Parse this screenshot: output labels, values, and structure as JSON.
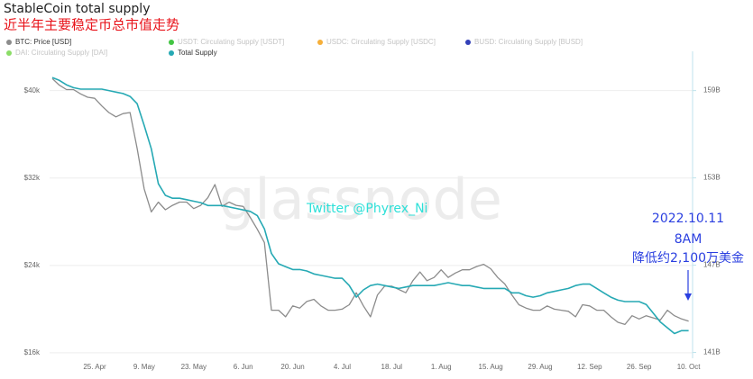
{
  "chart_data": {
    "type": "line",
    "title": "StableCoin total supply",
    "subtitle": "近半年主要稳定币总市值走势",
    "categories": [
      null,
      null,
      null,
      null,
      null,
      null,
      "25. Apr",
      null,
      null,
      null,
      null,
      null,
      null,
      "9. May",
      null,
      null,
      null,
      null,
      null,
      null,
      "23. May",
      null,
      null,
      null,
      null,
      null,
      null,
      "6. Jun",
      null,
      null,
      null,
      null,
      null,
      null,
      "20. Jun",
      null,
      null,
      null,
      null,
      null,
      null,
      "4. Jul",
      null,
      null,
      null,
      null,
      null,
      null,
      "18. Jul",
      null,
      null,
      null,
      null,
      null,
      null,
      "1. Aug",
      null,
      null,
      null,
      null,
      null,
      null,
      "15. Aug",
      null,
      null,
      null,
      null,
      null,
      null,
      "29. Aug",
      null,
      null,
      null,
      null,
      null,
      null,
      "12. Sep",
      null,
      null,
      null,
      null,
      null,
      null,
      "26. Sep",
      null,
      null,
      null,
      null,
      null,
      null,
      "10. Oct"
    ],
    "series": [
      {
        "name": "BTC: Price [USD]",
        "color": "#8c8c8c",
        "values": [
          41100,
          40500,
          40100,
          40100,
          39700,
          39400,
          39300,
          38600,
          38000,
          37600,
          37900,
          38000,
          34700,
          31000,
          28900,
          29800,
          29100,
          29500,
          29800,
          29800,
          29200,
          29500,
          30200,
          31400,
          29400,
          29800,
          29500,
          29400,
          28400,
          27300,
          26100,
          19900,
          19900,
          19300,
          20300,
          20100,
          20700,
          20900,
          20300,
          19900,
          19900,
          20000,
          20400,
          21500,
          20300,
          19300,
          21300,
          22100,
          22100,
          21800,
          21500,
          22600,
          23400,
          22600,
          22900,
          23600,
          22900,
          23300,
          23600,
          23600,
          23900,
          24100,
          23700,
          22900,
          22300,
          21300,
          20400,
          20100,
          19900,
          19900,
          20300,
          20000,
          19900,
          19800,
          19300,
          20400,
          20300,
          19900,
          19900,
          19300,
          18800,
          18600,
          19400,
          19100,
          19400,
          19200,
          19000,
          19900,
          19400,
          19100,
          18900
        ]
      },
      {
        "name": "Total Supply",
        "color": "#26a9b4",
        "axis": "y2",
        "values": [
          159.9,
          159.7,
          159.4,
          159.2,
          159.1,
          159.1,
          159.1,
          159.1,
          159.0,
          158.9,
          158.8,
          158.6,
          158.1,
          156.6,
          155.0,
          152.6,
          151.8,
          151.6,
          151.6,
          151.5,
          151.4,
          151.3,
          151.1,
          151.1,
          151.1,
          151.0,
          150.9,
          150.8,
          150.7,
          150.4,
          149.5,
          147.8,
          147.1,
          146.9,
          146.7,
          146.7,
          146.6,
          146.4,
          146.3,
          146.2,
          146.1,
          146.1,
          145.6,
          144.8,
          145.3,
          145.6,
          145.7,
          145.6,
          145.5,
          145.4,
          145.5,
          145.6,
          145.6,
          145.6,
          145.6,
          145.7,
          145.8,
          145.7,
          145.6,
          145.6,
          145.5,
          145.4,
          145.4,
          145.4,
          145.4,
          145.1,
          145.1,
          144.9,
          144.8,
          144.9,
          145.1,
          145.2,
          145.3,
          145.4,
          145.6,
          145.7,
          145.7,
          145.4,
          145.1,
          144.8,
          144.6,
          144.5,
          144.5,
          144.5,
          144.3,
          143.7,
          143.1,
          142.7,
          142.3,
          142.5,
          142.5
        ]
      }
    ],
    "hidden_series": [
      {
        "name": "USDT: Circulating Supply [USDT]",
        "color": "#2fbf2f"
      },
      {
        "name": "USDC: Circulating Supply [USDC]",
        "color": "#f5a623"
      },
      {
        "name": "BUSD: Circulating Supply [BUSD]",
        "color": "#1c2bb0"
      },
      {
        "name": "DAI: Circulating Supply [DAI]",
        "color": "#7ed957"
      }
    ],
    "ylim": [
      15500,
      43600
    ],
    "yticks": [
      {
        "value": 16000,
        "label": "$16k"
      },
      {
        "value": 24000,
        "label": "$24k"
      },
      {
        "value": 32000,
        "label": "$32k"
      },
      {
        "value": 40000,
        "label": "$40k"
      }
    ],
    "y2lim": [
      140.6,
      161.7
    ],
    "y2ticks": [
      {
        "value": 141,
        "label": "141B"
      },
      {
        "value": 147,
        "label": "147B"
      },
      {
        "value": 153,
        "label": "153B"
      },
      {
        "value": 159,
        "label": "159B"
      }
    ],
    "grid": true,
    "watermark": "glassnode",
    "credit": "Twitter @Phyrex_Ni",
    "annotation": [
      "2022.10.11",
      "8AM",
      "降低约2,100万美金"
    ]
  }
}
